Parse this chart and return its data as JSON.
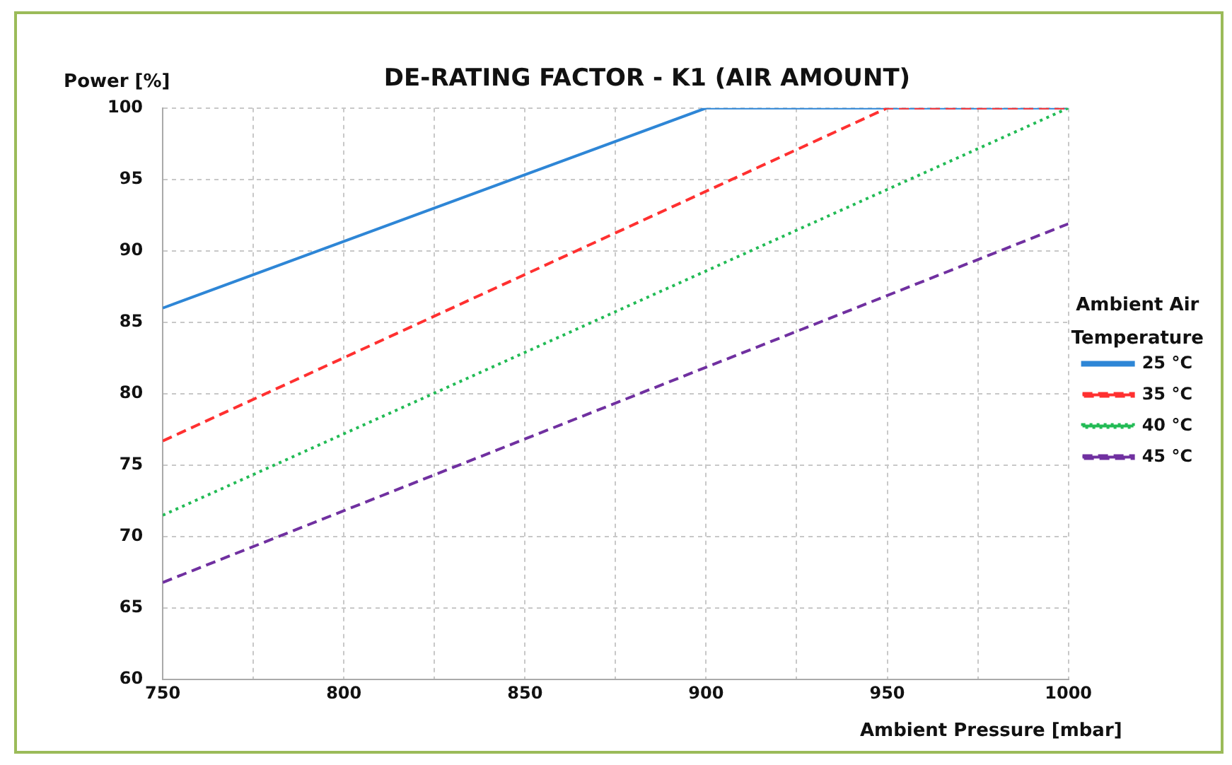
{
  "chart_data": {
    "type": "line",
    "title": "DE-RATING FACTOR - K1 (AIR AMOUNT)",
    "xlabel": "Ambient Pressure [mbar]",
    "ylabel": "Power [%]",
    "legend_title": "Ambient Air Temperature",
    "xlim": [
      750,
      1000
    ],
    "xticks": [
      750,
      {
        "value": 775,
        "label": null
      },
      800,
      {
        "value": 825,
        "label": null
      },
      850,
      {
        "value": 875,
        "label": null
      },
      900,
      {
        "value": 925,
        "label": null
      },
      950,
      {
        "value": 975,
        "label": null
      },
      1000
    ],
    "ylim": [
      60,
      100
    ],
    "yticks": [
      60,
      65,
      70,
      75,
      80,
      85,
      90,
      95,
      100
    ],
    "grid": true,
    "legend": "right",
    "marker": "none",
    "series": [
      {
        "name": "25 °C",
        "color": "#2e86d6",
        "line_style": "solid",
        "x": [
          750,
          900,
          1000
        ],
        "values": [
          86.0,
          100,
          100
        ]
      },
      {
        "name": "35 °C",
        "color": "#ff3030",
        "line_style": "dashed",
        "x": [
          750,
          950,
          1000
        ],
        "values": [
          76.7,
          100,
          100
        ]
      },
      {
        "name": "40 °C",
        "color": "#22bb55",
        "line_style": "dotted",
        "x": [
          750,
          1000
        ],
        "values": [
          71.5,
          100
        ]
      },
      {
        "name": "45 °C",
        "color": "#7030a0",
        "line_style": "dashed",
        "x": [
          750,
          1000
        ],
        "values": [
          66.8,
          91.9
        ]
      }
    ]
  }
}
